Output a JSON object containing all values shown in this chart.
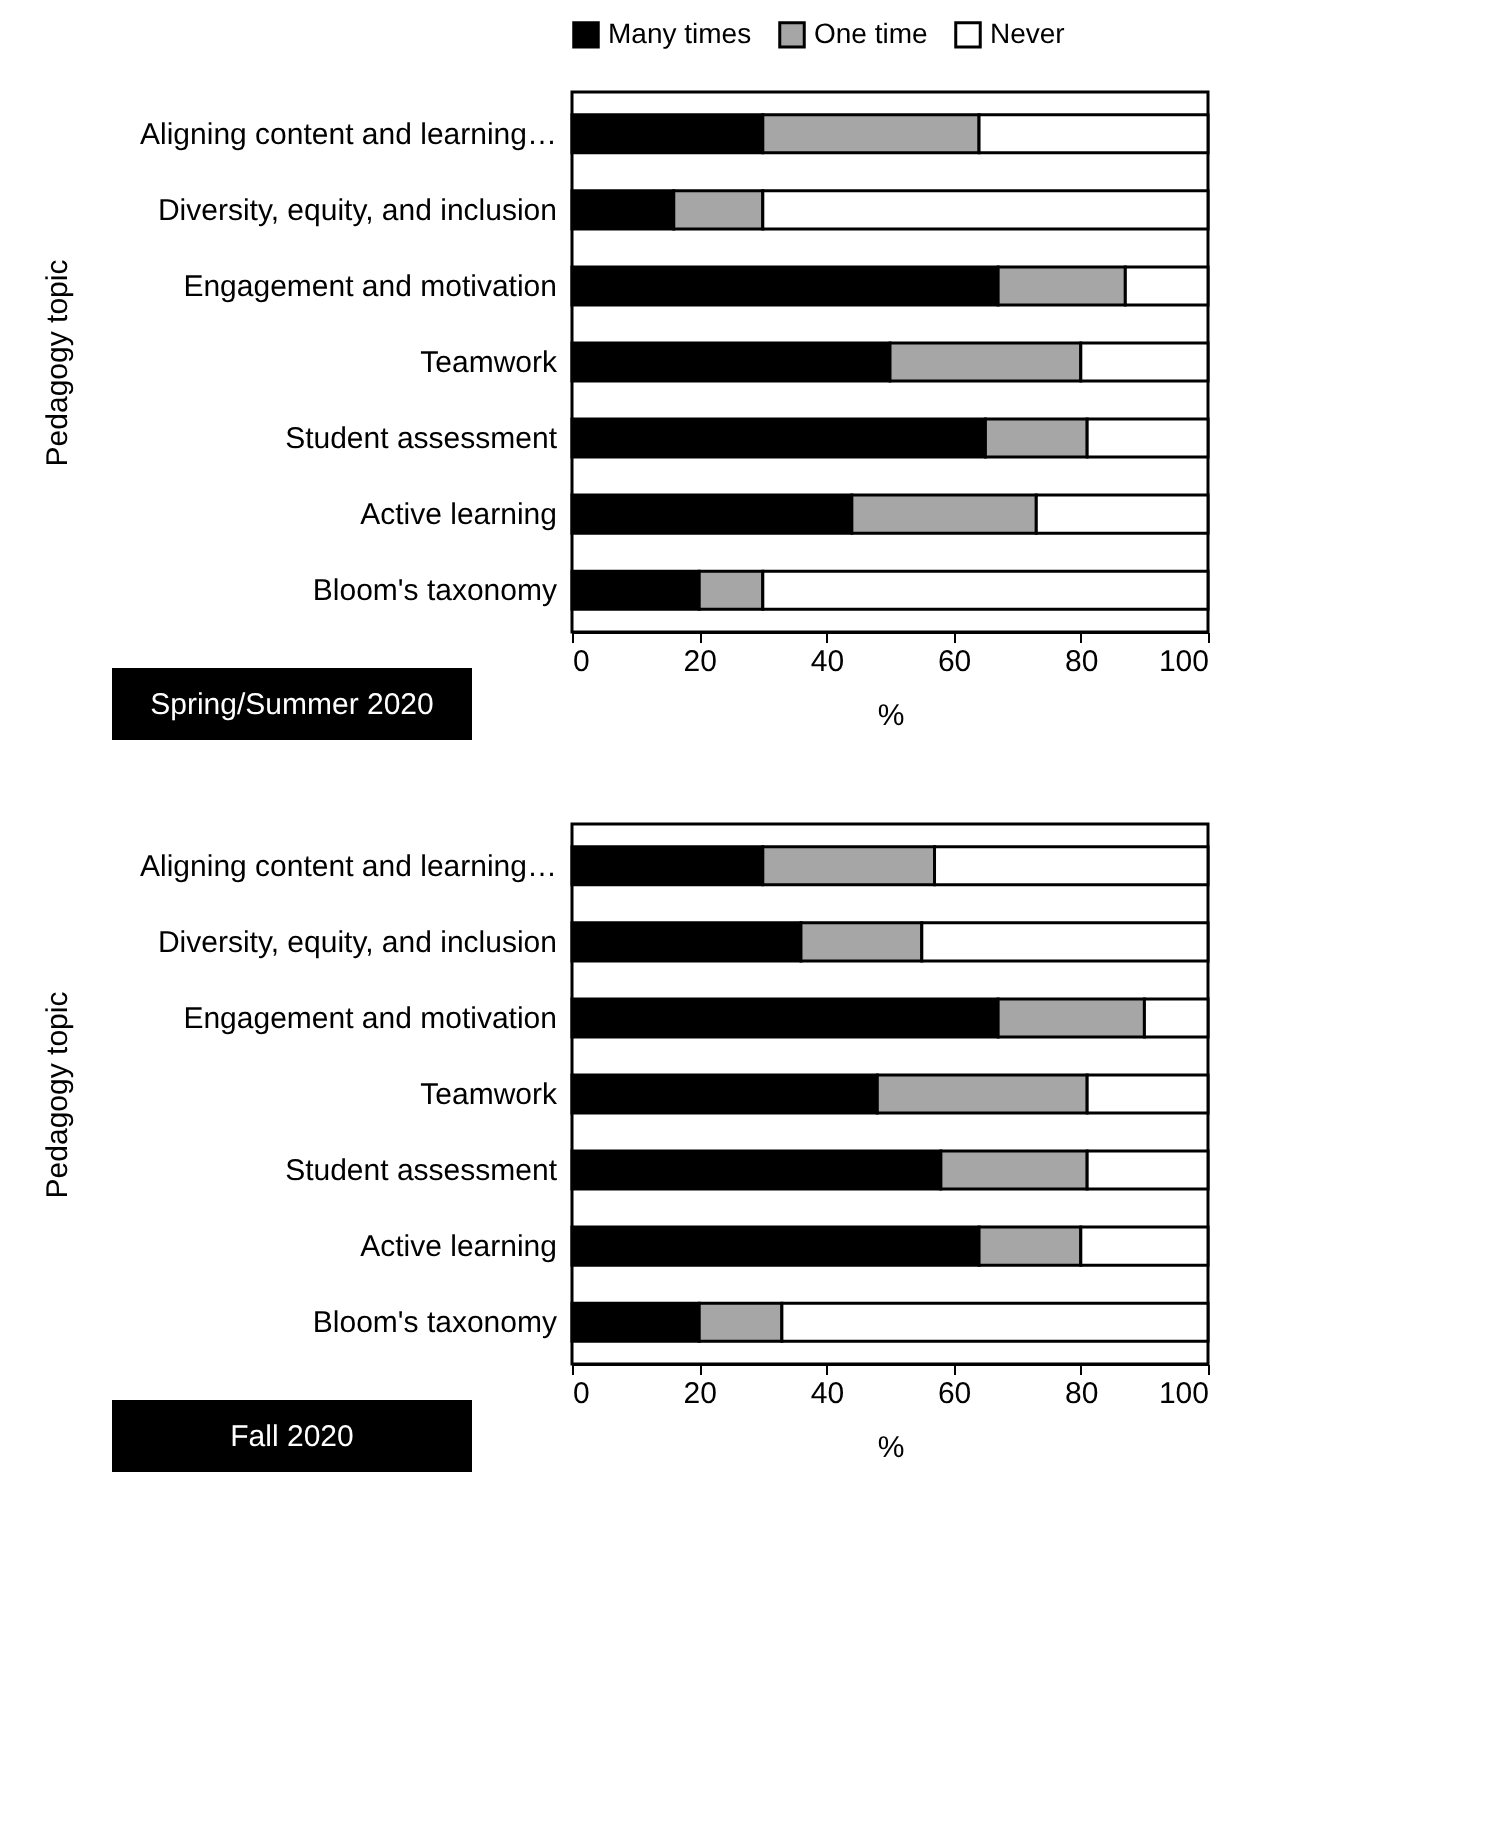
{
  "chart_data": [
    {
      "type": "bar",
      "orientation": "horizontal",
      "stacked": true,
      "title": "Spring/Summer 2020",
      "xlabel": "%",
      "ylabel": "Pedagogy topic",
      "legend": "top",
      "categories": [
        "Aligning content and learning…",
        "Diversity, equity, and inclusion",
        "Engagement and motivation",
        "Teamwork",
        "Student assessment",
        "Active learning",
        "Bloom's taxonomy"
      ],
      "series": [
        {
          "name": "Many times",
          "color": "#000000",
          "values": [
            30,
            16,
            67,
            50,
            65,
            44,
            20
          ]
        },
        {
          "name": "One time",
          "color": "#a6a6a6",
          "values": [
            34,
            14,
            20,
            30,
            16,
            29,
            10
          ]
        },
        {
          "name": "Never",
          "color": "#ffffff",
          "values": [
            36,
            70,
            13,
            20,
            19,
            27,
            70
          ]
        }
      ],
      "xlim": [
        0,
        100
      ],
      "xticks": [
        0,
        20,
        40,
        60,
        80,
        100
      ],
      "grid": false
    },
    {
      "type": "bar",
      "orientation": "horizontal",
      "stacked": true,
      "title": "Fall 2020",
      "xlabel": "%",
      "ylabel": "Pedagogy topic",
      "legend": "top",
      "categories": [
        "Aligning content and learning…",
        "Diversity, equity, and inclusion",
        "Engagement and motivation",
        "Teamwork",
        "Student assessment",
        "Active learning",
        "Bloom's taxonomy"
      ],
      "series": [
        {
          "name": "Many times",
          "color": "#000000",
          "values": [
            30,
            36,
            67,
            48,
            58,
            64,
            20
          ]
        },
        {
          "name": "One time",
          "color": "#a6a6a6",
          "values": [
            27,
            19,
            23,
            33,
            23,
            16,
            13
          ]
        },
        {
          "name": "Never",
          "color": "#ffffff",
          "values": [
            43,
            45,
            10,
            19,
            19,
            20,
            67
          ]
        }
      ],
      "xlim": [
        0,
        100
      ],
      "xticks": [
        0,
        20,
        40,
        60,
        80,
        100
      ],
      "grid": false
    }
  ]
}
